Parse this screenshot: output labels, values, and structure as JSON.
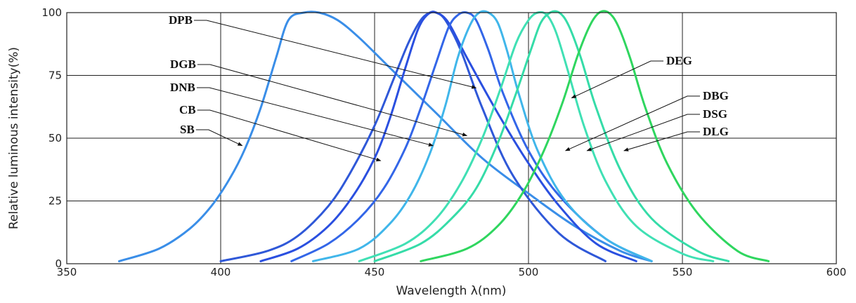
{
  "chart_data": {
    "type": "line",
    "title": "",
    "xlabel": "Wavelength  λ(nm)",
    "ylabel": "Relative luminous intensity(%)",
    "xlim": [
      350,
      600
    ],
    "ylim": [
      0,
      100
    ],
    "x_ticks": [
      "350",
      "400",
      "450",
      "500",
      "550",
      "600"
    ],
    "y_ticks": [
      "0",
      "25",
      "50",
      "75",
      "100"
    ],
    "grid": true,
    "series": [
      {
        "name": "SB",
        "color": "#3a8ee8",
        "x": [
          367,
          380,
          390,
          397,
          403,
          408,
          413,
          418,
          422,
          427,
          432,
          438,
          445,
          455,
          470,
          485,
          500,
          515,
          530,
          540
        ],
        "y": [
          1,
          6,
          14,
          23,
          34,
          46,
          62,
          82,
          97,
          100,
          100,
          97,
          90,
          78,
          60,
          42,
          28,
          15,
          5,
          1
        ]
      },
      {
        "name": "CB",
        "color": "#2f58d8",
        "x": [
          400,
          415,
          425,
          435,
          442,
          450,
          456,
          461,
          465,
          468,
          470,
          473,
          478,
          485,
          495,
          510,
          525
        ],
        "y": [
          1,
          5,
          11,
          23,
          36,
          55,
          73,
          88,
          97,
          100,
          100,
          97,
          85,
          62,
          35,
          12,
          1
        ]
      },
      {
        "name": "DNB",
        "color": "#2a4fe0",
        "x": [
          413,
          425,
          435,
          443,
          450,
          455,
          460,
          464,
          467,
          470,
          474,
          480,
          490,
          500,
          510,
          522,
          535
        ],
        "y": [
          1,
          6,
          15,
          27,
          42,
          58,
          78,
          93,
          99,
          100,
          96,
          82,
          60,
          40,
          23,
          8,
          1
        ]
      },
      {
        "name": "DGB",
        "color": "#3366e8",
        "x": [
          423,
          435,
          445,
          453,
          460,
          465,
          470,
          474,
          477,
          480,
          483,
          487,
          492,
          500,
          510,
          525,
          540
        ],
        "y": [
          1,
          8,
          18,
          30,
          46,
          62,
          80,
          94,
          99,
          100,
          97,
          85,
          67,
          45,
          27,
          10,
          1
        ]
      },
      {
        "name": "DPB",
        "color": "#40b6ea",
        "x": [
          430,
          445,
          455,
          462,
          468,
          473,
          477,
          481,
          484,
          487,
          490,
          493,
          497,
          503,
          512,
          525,
          540
        ],
        "y": [
          1,
          6,
          16,
          28,
          44,
          63,
          82,
          95,
          100,
          100,
          96,
          85,
          67,
          45,
          25,
          10,
          1
        ]
      },
      {
        "name": "DBG",
        "color": "#40e0b4",
        "x": [
          445,
          460,
          470,
          478,
          485,
          491,
          496,
          500,
          503,
          506,
          509,
          513,
          518,
          525,
          535,
          550,
          560
        ],
        "y": [
          1,
          8,
          18,
          32,
          50,
          70,
          88,
          97,
          100,
          99,
          92,
          76,
          55,
          33,
          15,
          4,
          1
        ]
      },
      {
        "name": "DSG",
        "color": "#35dca8",
        "x": [
          450,
          465,
          475,
          483,
          490,
          496,
          501,
          504,
          507,
          510,
          513,
          517,
          522,
          530,
          540,
          555,
          565
        ],
        "y": [
          1,
          8,
          18,
          30,
          48,
          68,
          86,
          96,
          100,
          100,
          95,
          82,
          62,
          37,
          18,
          5,
          1
        ]
      },
      {
        "name": "DLG",
        "color": "#2fd65f",
        "x": [
          465,
          480,
          490,
          498,
          505,
          511,
          516,
          520,
          523,
          526,
          529,
          533,
          538,
          545,
          555,
          568,
          578
        ],
        "y": [
          1,
          6,
          15,
          28,
          45,
          64,
          83,
          95,
          100,
          100,
          95,
          82,
          62,
          40,
          20,
          5,
          1
        ]
      }
    ],
    "annotations": [
      {
        "label": "DPB",
        "target_x": 483,
        "target_y": 70
      },
      {
        "label": "DGB",
        "target_x": 480,
        "target_y": 51
      },
      {
        "label": "DNB",
        "target_x": 469,
        "target_y": 47
      },
      {
        "label": "CB",
        "target_x": 452,
        "target_y": 41
      },
      {
        "label": "SB",
        "target_x": 407,
        "target_y": 47
      },
      {
        "label": "DEG",
        "target_x": 514,
        "target_y": 66
      },
      {
        "label": "DBG",
        "target_x": 512,
        "target_y": 45
      },
      {
        "label": "DSG",
        "target_x": 519,
        "target_y": 45
      },
      {
        "label": "DLG",
        "target_x": 531,
        "target_y": 45
      }
    ]
  }
}
